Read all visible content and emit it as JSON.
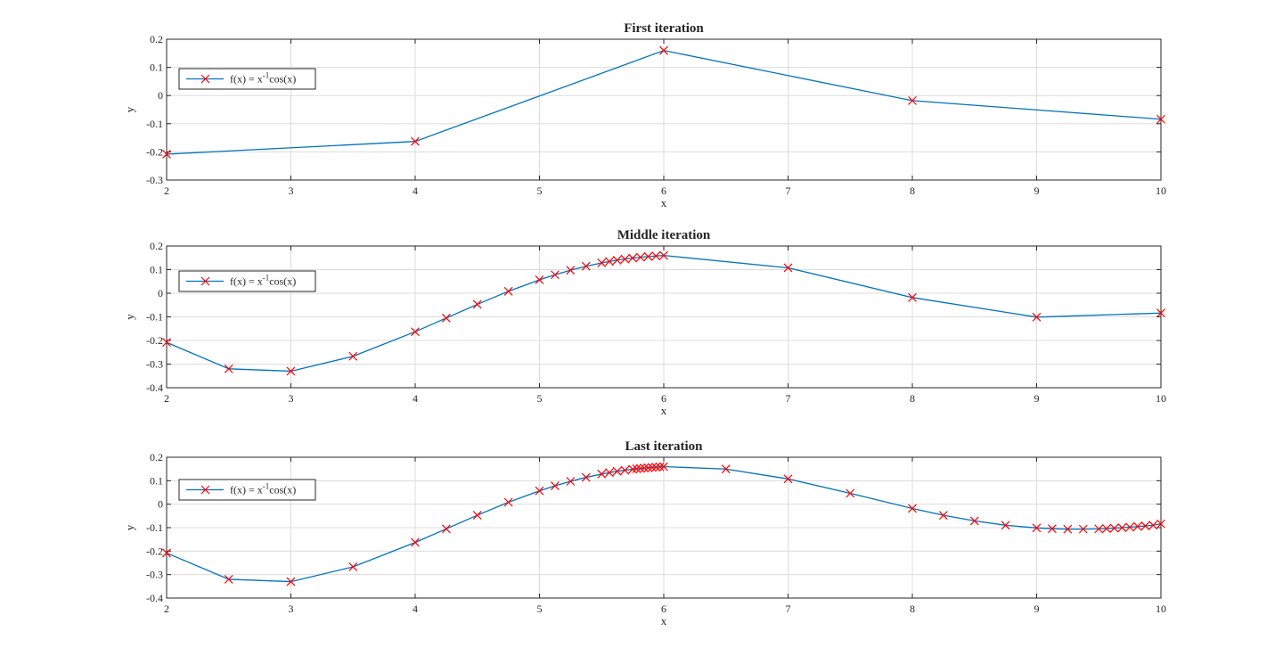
{
  "chart_data": [
    {
      "type": "line",
      "title": "First iteration",
      "xlabel": "x",
      "ylabel": "y",
      "xlim": [
        2,
        10
      ],
      "ylim": [
        -0.3,
        0.2
      ],
      "xticks": [
        2,
        3,
        4,
        5,
        6,
        7,
        8,
        9,
        10
      ],
      "yticks": [
        -0.3,
        -0.2,
        -0.1,
        0,
        0.1,
        0.2
      ],
      "grid": true,
      "legend_position": "left",
      "series": [
        {
          "name": "f(x) = x^-1 cos(x)",
          "legend_base": "f(x) = x",
          "legend_sup": "-1",
          "legend_tail": "cos(x)",
          "line_color": "#0072bd",
          "marker": "x",
          "marker_color": "#ff0000",
          "x": [
            2,
            4,
            6,
            8,
            10
          ],
          "y": [
            -0.208,
            -0.163,
            0.16,
            -0.018,
            -0.084
          ]
        }
      ]
    },
    {
      "type": "line",
      "title": "Middle iteration",
      "xlabel": "x",
      "ylabel": "y",
      "xlim": [
        2,
        10
      ],
      "ylim": [
        -0.4,
        0.2
      ],
      "xticks": [
        2,
        3,
        4,
        5,
        6,
        7,
        8,
        9,
        10
      ],
      "yticks": [
        -0.4,
        -0.3,
        -0.2,
        -0.1,
        0,
        0.1,
        0.2
      ],
      "grid": true,
      "legend_position": "left",
      "series": [
        {
          "name": "f(x) = x^-1 cos(x)",
          "legend_base": "f(x) = x",
          "legend_sup": "-1",
          "legend_tail": "cos(x)",
          "line_color": "#0072bd",
          "marker": "x",
          "marker_color": "#ff0000",
          "x": [
            2,
            2.5,
            3,
            3.5,
            4,
            4.25,
            4.5,
            4.75,
            5,
            5.125,
            5.25,
            5.375,
            5.5,
            5.5625,
            5.625,
            5.6875,
            5.75,
            5.8125,
            5.875,
            5.9375,
            6,
            7,
            8,
            9,
            10
          ],
          "y": [
            -0.208,
            -0.32,
            -0.33,
            -0.267,
            -0.163,
            -0.105,
            -0.047,
            0.0082,
            0.0567,
            0.0783,
            0.0975,
            0.1143,
            0.1285,
            0.1346,
            0.14,
            0.1447,
            0.149,
            0.1524,
            0.1553,
            0.1577,
            0.16,
            0.1077,
            -0.0182,
            -0.1012,
            -0.0839
          ]
        }
      ]
    },
    {
      "type": "line",
      "title": "Last iteration",
      "xlabel": "x",
      "ylabel": "y",
      "xlim": [
        2,
        10
      ],
      "ylim": [
        -0.4,
        0.2
      ],
      "xticks": [
        2,
        3,
        4,
        5,
        6,
        7,
        8,
        9,
        10
      ],
      "yticks": [
        -0.4,
        -0.3,
        -0.2,
        -0.1,
        0,
        0.1,
        0.2
      ],
      "grid": true,
      "legend_position": "left",
      "series": [
        {
          "name": "f(x) = x^-1 cos(x)",
          "legend_base": "f(x) = x",
          "legend_sup": "-1",
          "legend_tail": "cos(x)",
          "line_color": "#0072bd",
          "marker": "x",
          "marker_color": "#ff0000",
          "x": [
            2,
            2.5,
            3,
            3.5,
            4,
            4.25,
            4.5,
            4.75,
            5,
            5.125,
            5.25,
            5.375,
            5.5,
            5.5625,
            5.625,
            5.6875,
            5.75,
            5.78125,
            5.8125,
            5.84375,
            5.875,
            5.90625,
            5.9375,
            5.96875,
            6,
            6.5,
            7,
            7.5,
            8,
            8.25,
            8.5,
            8.75,
            9,
            9.125,
            9.25,
            9.375,
            9.5,
            9.5625,
            9.625,
            9.6875,
            9.75,
            9.8125,
            9.875,
            9.9375,
            10
          ],
          "y": [
            -0.208,
            -0.32,
            -0.33,
            -0.267,
            -0.163,
            -0.105,
            -0.047,
            0.0082,
            0.0567,
            0.0783,
            0.0975,
            0.1143,
            0.1285,
            0.1346,
            0.14,
            0.1447,
            0.149,
            0.1508,
            0.1524,
            0.1539,
            0.1553,
            0.1565,
            0.1577,
            0.1589,
            0.16,
            0.1498,
            0.1077,
            0.0462,
            -0.0182,
            -0.0475,
            -0.0712,
            -0.0898,
            -0.1012,
            -0.1045,
            -0.1064,
            -0.1062,
            -0.1052,
            -0.1039,
            -0.1022,
            -0.1001,
            -0.0978,
            -0.0952,
            -0.0926,
            -0.0897,
            -0.0839
          ]
        }
      ]
    }
  ]
}
